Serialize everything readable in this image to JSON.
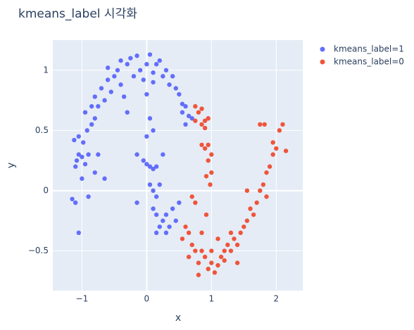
{
  "chart_data": {
    "type": "scatter",
    "title": "kmeans_label 시각화",
    "x_label": "x",
    "y_label": "y",
    "xlim": [
      -1.45,
      2.41
    ],
    "ylim": [
      -0.83,
      1.25
    ],
    "xticks": [
      {
        "value": -1,
        "label": "−1"
      },
      0,
      1,
      2
    ],
    "yticks": [
      {
        "value": -0.5,
        "label": "−0.5"
      },
      0,
      0.5,
      1
    ],
    "grid": true,
    "legend_position": "right",
    "series": [
      {
        "name": "kmeans_label=1",
        "color": "#636efa",
        "x": [
          -1.15,
          -1.1,
          -1.05,
          -1.1,
          -1.08,
          -1.05,
          -1.0,
          -0.95,
          -1.12,
          -1.05,
          -0.98,
          -0.92,
          -0.9,
          -1.0,
          -0.85,
          -0.8,
          -0.95,
          -0.85,
          -0.75,
          -0.8,
          -0.7,
          -0.65,
          -0.6,
          -0.55,
          -0.5,
          -0.6,
          -0.45,
          -0.4,
          -0.35,
          -0.4,
          -0.3,
          -0.25,
          -0.2,
          -0.15,
          -0.1,
          -0.05,
          0.0,
          0.05,
          0.1,
          0.1,
          0.15,
          0.2,
          0.25,
          0.3,
          0.35,
          0.4,
          0.45,
          0.5,
          0.55,
          0.6,
          0.65,
          0.6,
          0.7,
          0.55,
          -0.65,
          -0.75,
          -0.8,
          -0.9,
          0.0,
          -0.3,
          -0.15,
          -0.05,
          0.0,
          0.05,
          0.1,
          0.15,
          0.05,
          0.1,
          0.15,
          0.0,
          0.1,
          0.1,
          0.15,
          0.2,
          0.25,
          0.3,
          0.35,
          0.4,
          0.45,
          0.15,
          0.3,
          0.5,
          -0.15,
          0.2,
          0.05,
          0.25
        ],
        "y": [
          -0.07,
          -0.1,
          -0.35,
          0.2,
          0.25,
          0.3,
          0.28,
          0.22,
          0.42,
          0.45,
          0.4,
          0.5,
          0.3,
          0.1,
          0.55,
          0.6,
          0.65,
          0.7,
          0.7,
          0.78,
          0.85,
          0.75,
          0.92,
          0.82,
          0.95,
          1.02,
          1.0,
          0.88,
          0.78,
          1.08,
          1.05,
          1.1,
          0.95,
          1.12,
          1.0,
          0.92,
          1.05,
          1.13,
          0.98,
          0.9,
          1.05,
          1.08,
          0.95,
          1.0,
          0.88,
          0.95,
          0.85,
          0.8,
          0.72,
          0.7,
          0.62,
          0.55,
          0.6,
          0.65,
          0.1,
          0.3,
          0.15,
          -0.05,
          0.8,
          0.65,
          0.3,
          0.25,
          0.22,
          0.2,
          0.18,
          0.2,
          0.05,
          0.0,
          -0.05,
          0.45,
          0.5,
          -0.15,
          -0.2,
          -0.3,
          -0.25,
          -0.2,
          -0.3,
          -0.15,
          -0.25,
          -0.35,
          -0.35,
          -0.1,
          -0.1,
          0.05,
          0.6,
          0.3
        ]
      },
      {
        "name": "kmeans_label=0",
        "color": "#EF553B",
        "x": [
          0.75,
          0.8,
          0.85,
          0.9,
          0.95,
          0.75,
          0.85,
          0.9,
          0.85,
          0.9,
          0.95,
          1.0,
          0.95,
          1.0,
          0.92,
          0.98,
          0.7,
          0.75,
          0.55,
          0.6,
          0.65,
          0.7,
          0.65,
          0.75,
          0.8,
          0.85,
          0.9,
          0.95,
          1.0,
          1.05,
          1.1,
          1.15,
          1.2,
          1.25,
          1.3,
          1.35,
          1.4,
          1.45,
          1.5,
          1.55,
          1.6,
          1.65,
          1.7,
          1.75,
          1.8,
          1.85,
          1.9,
          1.95,
          2.0,
          2.05,
          2.1,
          2.15,
          1.75,
          1.82,
          1.95,
          1.85,
          1.55,
          1.3,
          1.1,
          1.0,
          0.85,
          0.92,
          1.4,
          1.2,
          0.8
        ],
        "y": [
          0.7,
          0.65,
          0.68,
          0.58,
          0.6,
          0.58,
          0.55,
          0.52,
          0.38,
          0.35,
          0.38,
          0.3,
          0.25,
          0.15,
          0.12,
          0.05,
          -0.05,
          -0.1,
          -0.4,
          -0.3,
          -0.35,
          -0.45,
          -0.55,
          -0.5,
          -0.6,
          -0.5,
          -0.55,
          -0.65,
          -0.6,
          -0.68,
          -0.62,
          -0.55,
          -0.5,
          -0.45,
          -0.5,
          -0.4,
          -0.45,
          -0.35,
          -0.3,
          -0.25,
          -0.15,
          -0.2,
          -0.1,
          0.0,
          0.05,
          0.15,
          0.2,
          0.3,
          0.35,
          0.5,
          0.55,
          0.33,
          0.55,
          0.55,
          0.4,
          -0.05,
          0.0,
          -0.35,
          -0.4,
          -0.5,
          -0.35,
          -0.2,
          -0.6,
          -0.58,
          -0.7
        ]
      }
    ]
  }
}
